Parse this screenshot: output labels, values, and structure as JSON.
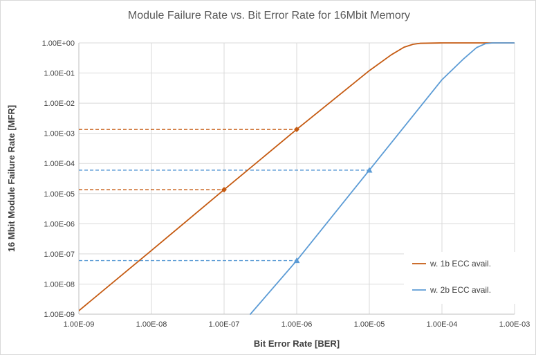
{
  "chart_data": {
    "type": "line",
    "title": "Module Failure Rate vs. Bit Error Rate for 16Mbit Memory",
    "xlabel": "Bit Error Rate [BER]",
    "ylabel": "16 Mbit Module Failure Rate [MFR]",
    "x_scale": "log",
    "y_scale": "log",
    "xlim": [
      1e-09,
      0.001
    ],
    "ylim": [
      1e-09,
      1
    ],
    "x_tick_values": [
      1e-09,
      1e-08,
      1e-07,
      1e-06,
      1e-05,
      0.0001,
      0.001
    ],
    "x_tick_labels": [
      "1.00E-09",
      "1.00E-08",
      "1.00E-07",
      "1.00E-06",
      "1.00E-05",
      "1.00E-04",
      "1.00E-03"
    ],
    "y_tick_values": [
      1e-09,
      1e-08,
      1e-07,
      1e-06,
      1e-05,
      0.0001,
      0.001,
      0.01,
      0.1,
      1
    ],
    "y_tick_labels": [
      "1.00E-09",
      "1.00E-08",
      "1.00E-07",
      "1.00E-06",
      "1.00E-05",
      "1.00E-04",
      "1.00E-03",
      "1.00E-02",
      "1.00E-01",
      "1.00E+00"
    ],
    "grid": true,
    "legend_position": "bottom-right",
    "series": [
      {
        "name": "w. 1b ECC avail.",
        "color": "#c55a11",
        "x": [
          1e-09,
          1e-08,
          1e-07,
          1e-06,
          1e-05,
          2e-05,
          3e-05,
          4e-05,
          5e-05,
          0.0001,
          0.001
        ],
        "y": [
          1.3e-09,
          1.3e-07,
          1.35e-05,
          0.00135,
          0.12,
          0.4,
          0.72,
          0.9,
          0.97,
          1,
          1
        ]
      },
      {
        "name": "w. 2b ECC avail.",
        "color": "#5b9bd5",
        "x": [
          2.3e-07,
          1e-06,
          1e-05,
          0.0001,
          0.0002,
          0.0003,
          0.0004,
          0.0005,
          0.001
        ],
        "y": [
          1e-09,
          6e-08,
          6e-05,
          0.06,
          0.3,
          0.7,
          0.95,
          1,
          1
        ]
      }
    ],
    "annotations": [
      {
        "color": "#c55a11",
        "marker": "diamond",
        "x": 1e-06,
        "y": 0.00135
      },
      {
        "color": "#c55a11",
        "marker": "diamond",
        "x": 1e-07,
        "y": 1.35e-05
      },
      {
        "color": "#5b9bd5",
        "marker": "triangle",
        "x": 1e-05,
        "y": 6e-05
      },
      {
        "color": "#5b9bd5",
        "marker": "triangle",
        "x": 1e-06,
        "y": 6e-08
      }
    ]
  }
}
